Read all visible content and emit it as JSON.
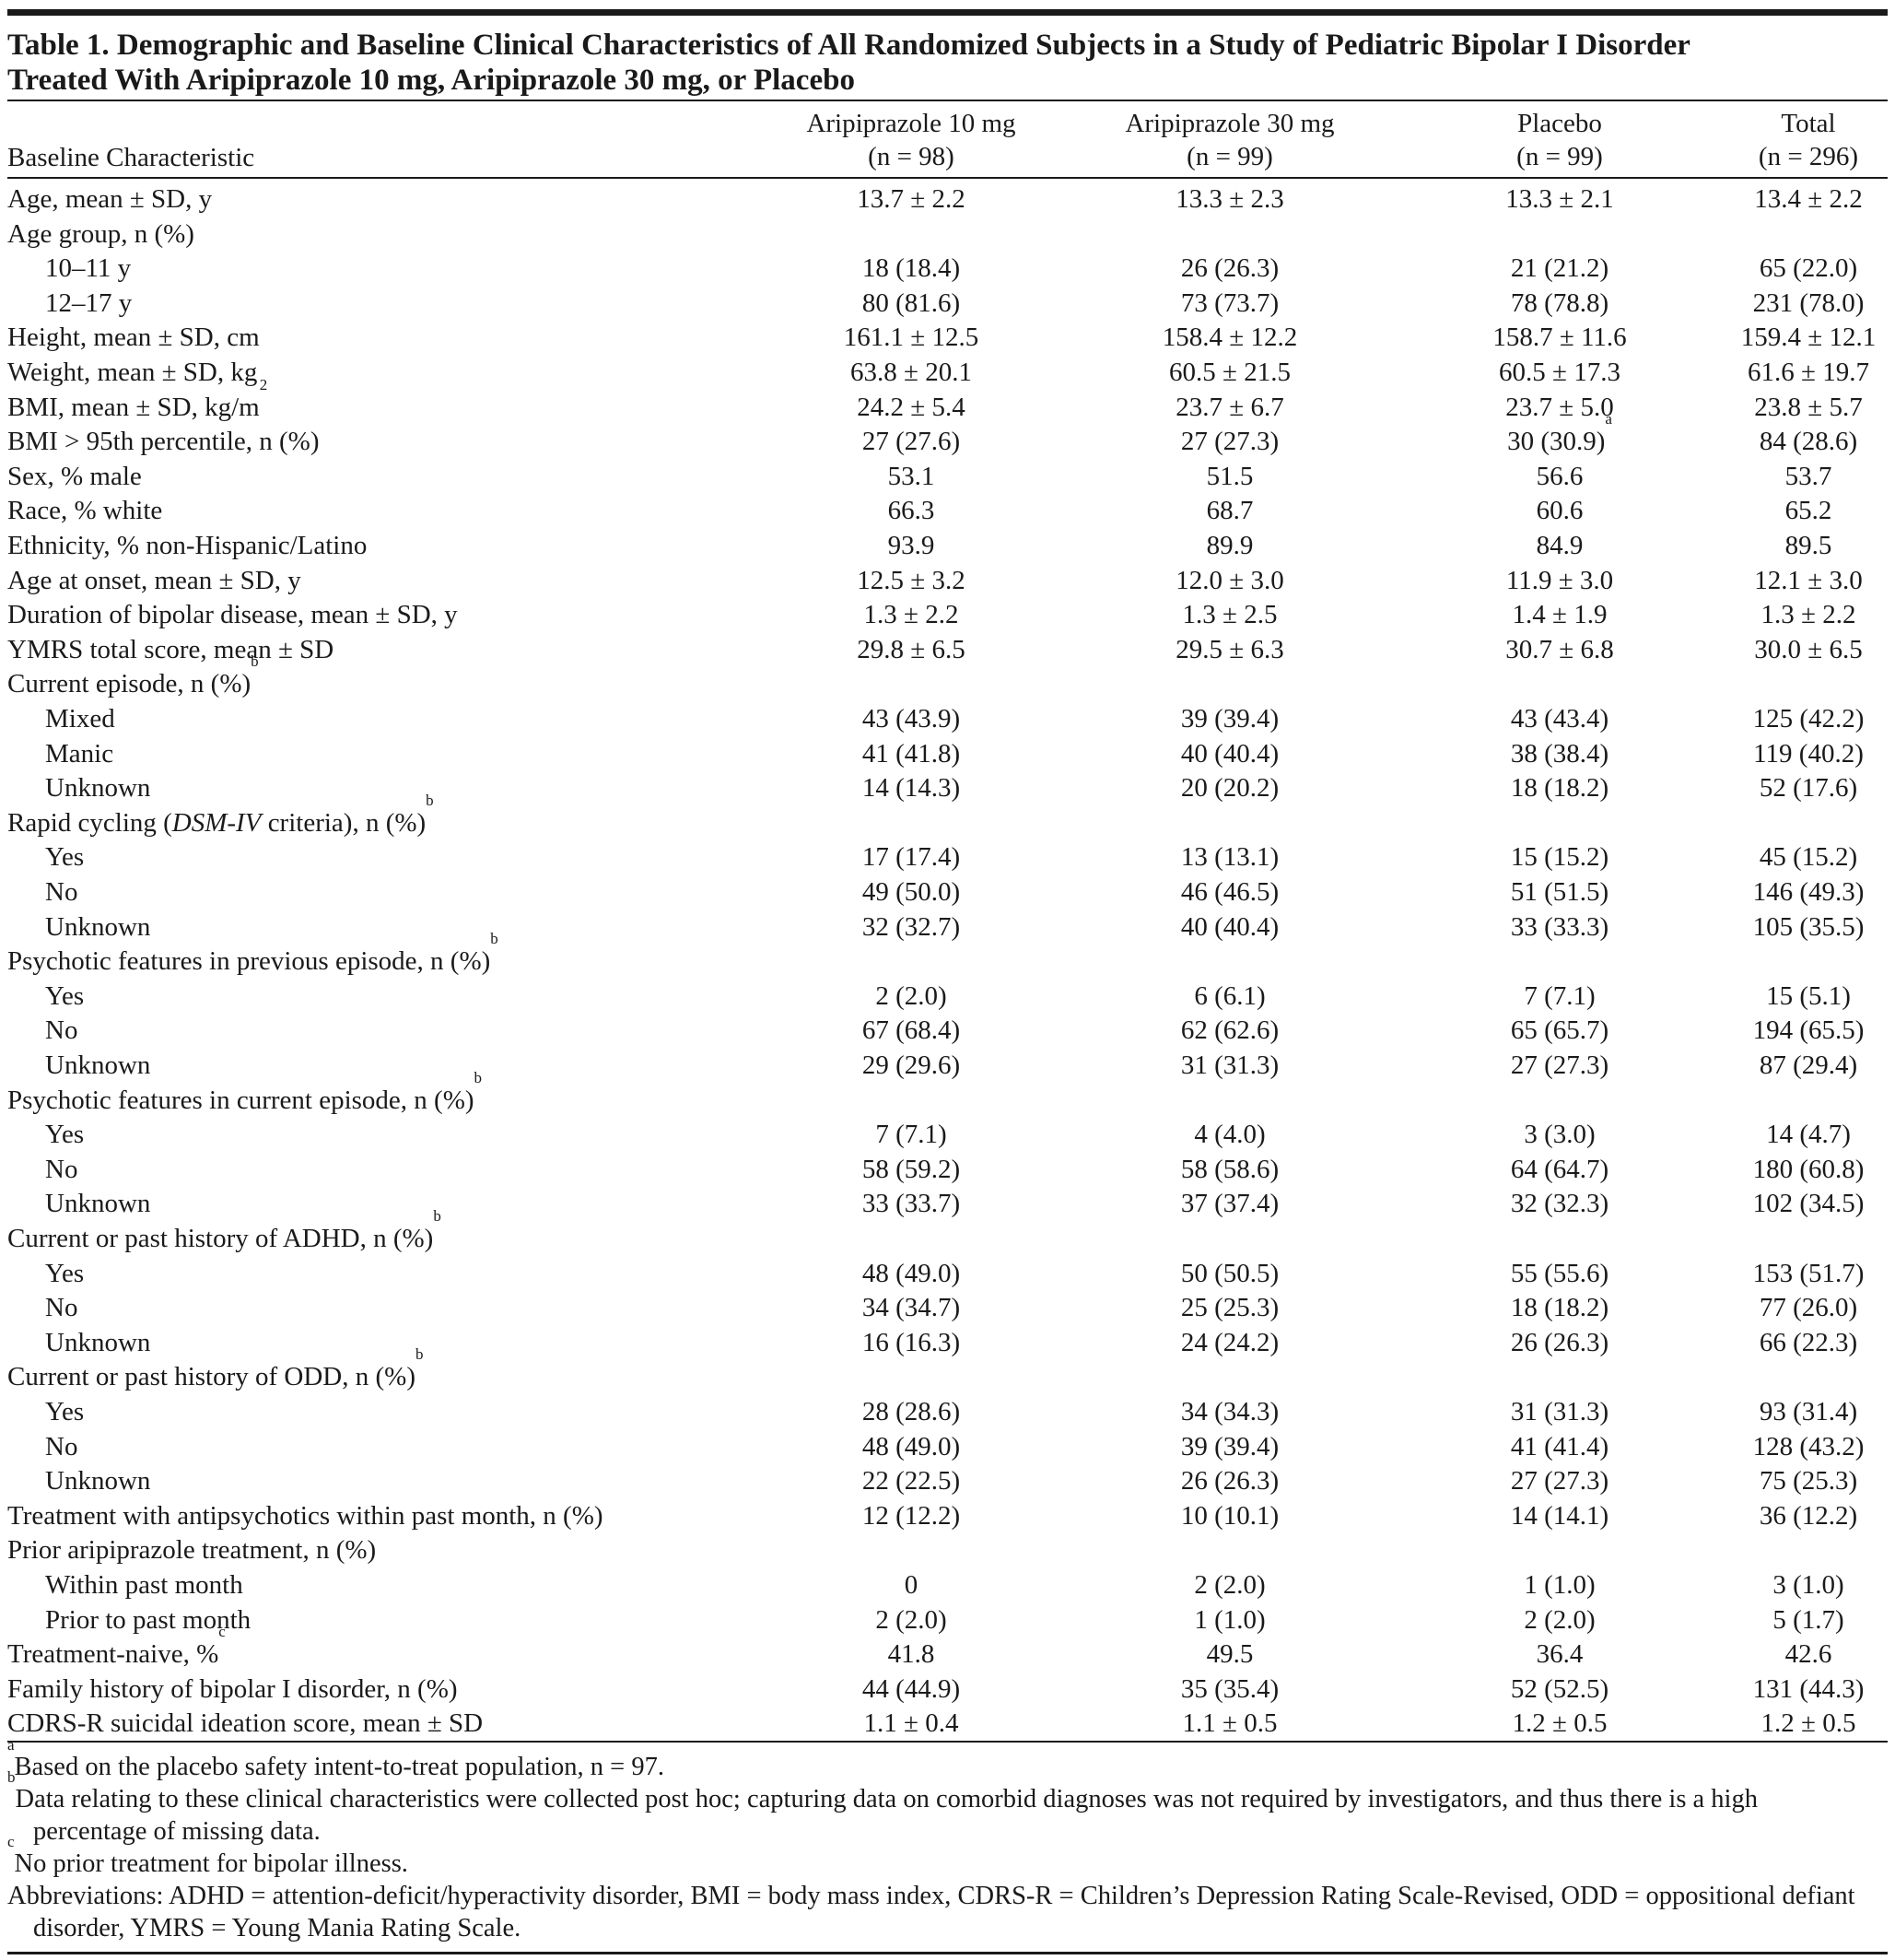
{
  "title": [
    "Table 1. Demographic and Baseline Clinical Characteristics of All Randomized Subjects in a Study of Pediatric Bipolar I Disorder",
    "Treated With Aripiprazole 10 mg, Aripiprazole 30 mg, or Placebo"
  ],
  "header": {
    "stub": "Baseline Characteristic",
    "columns": [
      {
        "name": "Aripiprazole 10 mg",
        "n": "(n = 98)"
      },
      {
        "name": "Aripiprazole 30 mg",
        "n": "(n = 99)"
      },
      {
        "name": "Placebo",
        "n": "(n = 99)"
      },
      {
        "name": "Total",
        "n": "(n = 296)"
      }
    ]
  },
  "rows": [
    {
      "label": "Age, mean ± SD, y",
      "values": [
        "13.7 ± 2.2",
        "13.3 ± 2.3",
        "13.3 ± 2.1",
        "13.4 ± 2.2"
      ]
    },
    {
      "label": "Age group, n (%)",
      "subrows": [
        {
          "label": "10–11 y",
          "values": [
            "18 (18.4)",
            "26 (26.3)",
            "21 (21.2)",
            "65 (22.0)"
          ]
        },
        {
          "label": "12–17 y",
          "values": [
            "80 (81.6)",
            "73 (73.7)",
            "78 (78.8)",
            "231 (78.0)"
          ]
        }
      ]
    },
    {
      "label": "Height, mean ± SD, cm",
      "values": [
        "161.1 ± 12.5",
        "158.4 ± 12.2",
        "158.7 ± 11.6",
        "159.4 ± 12.1"
      ]
    },
    {
      "label": "Weight, mean ± SD, kg",
      "values": [
        "63.8 ± 20.1",
        "60.5 ± 21.5",
        "60.5 ± 17.3",
        "61.6 ± 19.7"
      ]
    },
    {
      "label": "BMI, mean ± SD, kg/m",
      "sup": "2",
      "values": [
        "24.2 ± 5.4",
        "23.7 ± 6.7",
        "23.7 ± 5.0",
        "23.8 ± 5.7"
      ]
    },
    {
      "label": "BMI > 95th percentile, n (%)",
      "values": [
        "27 (27.6)",
        "27 (27.3)",
        {
          "text": "30 (30.9)",
          "sup": "a"
        },
        "84 (28.6)"
      ]
    },
    {
      "label": "Sex, % male",
      "values": [
        "53.1",
        "51.5",
        "56.6",
        "53.7"
      ]
    },
    {
      "label": "Race, % white",
      "values": [
        "66.3",
        "68.7",
        "60.6",
        "65.2"
      ]
    },
    {
      "label": "Ethnicity, % non-Hispanic/Latino",
      "values": [
        "93.9",
        "89.9",
        "84.9",
        "89.5"
      ]
    },
    {
      "label": "Age at onset, mean ± SD, y",
      "values": [
        "12.5 ± 3.2",
        "12.0 ± 3.0",
        "11.9 ± 3.0",
        "12.1 ± 3.0"
      ]
    },
    {
      "label": "Duration of bipolar disease, mean ± SD, y",
      "values": [
        "1.3 ± 2.2",
        "1.3 ± 2.5",
        "1.4 ± 1.9",
        "1.3 ± 2.2"
      ]
    },
    {
      "label": "YMRS total score, mean ± SD",
      "values": [
        "29.8 ± 6.5",
        "29.5 ± 6.3",
        "30.7 ± 6.8",
        "30.0 ± 6.5"
      ]
    },
    {
      "label": "Current episode, n (%)",
      "sup": "b",
      "subrows": [
        {
          "label": "Mixed",
          "values": [
            "43 (43.9)",
            "39 (39.4)",
            "43 (43.4)",
            "125 (42.2)"
          ]
        },
        {
          "label": "Manic",
          "values": [
            "41 (41.8)",
            "40 (40.4)",
            "38 (38.4)",
            "119 (40.2)"
          ]
        },
        {
          "label": "Unknown",
          "values": [
            "14 (14.3)",
            "20 (20.2)",
            "18 (18.2)",
            "52 (17.6)"
          ]
        }
      ]
    },
    {
      "label": [
        {
          "text": "Rapid cycling ("
        },
        {
          "text": "DSM-IV",
          "italic": true
        },
        {
          "text": " criteria), n (%)"
        }
      ],
      "sup": "b",
      "subrows": [
        {
          "label": "Yes",
          "values": [
            "17 (17.4)",
            "13 (13.1)",
            "15 (15.2)",
            "45 (15.2)"
          ]
        },
        {
          "label": "No",
          "values": [
            "49 (50.0)",
            "46 (46.5)",
            "51 (51.5)",
            "146 (49.3)"
          ]
        },
        {
          "label": "Unknown",
          "values": [
            "32 (32.7)",
            "40 (40.4)",
            "33 (33.3)",
            "105 (35.5)"
          ]
        }
      ]
    },
    {
      "label": "Psychotic features in previous episode, n (%)",
      "sup": "b",
      "subrows": [
        {
          "label": "Yes",
          "values": [
            "2 (2.0)",
            "6 (6.1)",
            "7 (7.1)",
            "15 (5.1)"
          ]
        },
        {
          "label": "No",
          "values": [
            "67 (68.4)",
            "62 (62.6)",
            "65 (65.7)",
            "194 (65.5)"
          ]
        },
        {
          "label": "Unknown",
          "values": [
            "29 (29.6)",
            "31 (31.3)",
            "27 (27.3)",
            "87 (29.4)"
          ]
        }
      ]
    },
    {
      "label": "Psychotic features in current episode, n (%)",
      "sup": "b",
      "subrows": [
        {
          "label": "Yes",
          "values": [
            "7 (7.1)",
            "4 (4.0)",
            "3 (3.0)",
            "14 (4.7)"
          ]
        },
        {
          "label": "No",
          "values": [
            "58 (59.2)",
            "58 (58.6)",
            "64 (64.7)",
            "180 (60.8)"
          ]
        },
        {
          "label": "Unknown",
          "values": [
            "33 (33.7)",
            "37 (37.4)",
            "32 (32.3)",
            "102 (34.5)"
          ]
        }
      ]
    },
    {
      "label": "Current or past history of ADHD, n (%)",
      "sup": "b",
      "subrows": [
        {
          "label": "Yes",
          "values": [
            "48 (49.0)",
            "50 (50.5)",
            "55 (55.6)",
            "153 (51.7)"
          ]
        },
        {
          "label": "No",
          "values": [
            "34 (34.7)",
            "25 (25.3)",
            "18 (18.2)",
            "77 (26.0)"
          ]
        },
        {
          "label": "Unknown",
          "values": [
            "16 (16.3)",
            "24 (24.2)",
            "26 (26.3)",
            "66 (22.3)"
          ]
        }
      ]
    },
    {
      "label": "Current or past history of ODD, n (%)",
      "sup": "b",
      "subrows": [
        {
          "label": "Yes",
          "values": [
            "28 (28.6)",
            "34 (34.3)",
            "31 (31.3)",
            "93 (31.4)"
          ]
        },
        {
          "label": "No",
          "values": [
            "48 (49.0)",
            "39 (39.4)",
            "41 (41.4)",
            "128 (43.2)"
          ]
        },
        {
          "label": "Unknown",
          "values": [
            "22 (22.5)",
            "26 (26.3)",
            "27 (27.3)",
            "75 (25.3)"
          ]
        }
      ]
    },
    {
      "label": "Treatment with antipsychotics within past month, n (%)",
      "values": [
        "12 (12.2)",
        "10 (10.1)",
        "14 (14.1)",
        "36 (12.2)"
      ]
    },
    {
      "label": "Prior aripiprazole treatment, n (%)",
      "subrows": [
        {
          "label": "Within past month",
          "values": [
            "0",
            "2 (2.0)",
            "1 (1.0)",
            "3 (1.0)"
          ]
        },
        {
          "label": "Prior to past month",
          "values": [
            "2 (2.0)",
            "1 (1.0)",
            "2 (2.0)",
            "5 (1.7)"
          ]
        }
      ]
    },
    {
      "label": "Treatment-naive, %",
      "sup": "c",
      "values": [
        "41.8",
        "49.5",
        "36.4",
        "42.6"
      ]
    },
    {
      "label": "Family history of bipolar I disorder, n (%)",
      "values": [
        "44 (44.9)",
        "35 (35.4)",
        "52 (52.5)",
        "131 (44.3)"
      ]
    },
    {
      "label": "CDRS-R suicidal ideation score, mean ± SD",
      "values": [
        "1.1 ± 0.4",
        "1.1 ± 0.5",
        "1.2 ± 0.5",
        "1.2 ± 0.5"
      ]
    }
  ],
  "footnotes": [
    {
      "mark": "a",
      "text": "Based on the placebo safety intent-to-treat population, n = 97."
    },
    {
      "mark": "b",
      "text": "Data relating to these clinical characteristics were collected post hoc; capturing data on comorbid diagnoses was not required by investigators, and thus there is a high percentage of missing data."
    },
    {
      "mark": "c",
      "text": "No prior treatment for bipolar illness."
    },
    {
      "text": "Abbreviations: ADHD = attention-deficit/hyperactivity disorder, BMI = body mass index, CDRS-R = Children’s Depression Rating Scale-Revised, ODD = oppositional defiant disorder, YMRS = Young Mania Rating Scale."
    }
  ]
}
